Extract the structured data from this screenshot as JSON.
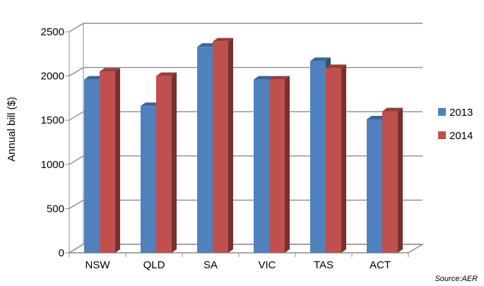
{
  "chart_data": {
    "type": "bar",
    "style": "3d-clustered-column",
    "categories": [
      "NSW",
      "QLD",
      "SA",
      "VIC",
      "TAS",
      "ACT"
    ],
    "series": [
      {
        "name": "2013",
        "values": [
          1960,
          1660,
          2330,
          1960,
          2170,
          1510
        ],
        "color": "#4F81BD"
      },
      {
        "name": "2014",
        "values": [
          2050,
          2000,
          2390,
          1960,
          2090,
          1600
        ],
        "color": "#C0504D"
      }
    ],
    "ylabel": "Annual bill ($)",
    "xlabel": "",
    "ylim": [
      0,
      2500
    ],
    "yticks": [
      0,
      500,
      1000,
      1500,
      2000,
      2500
    ],
    "grid": true,
    "legend_position": "right",
    "source_note": "Source:AER"
  }
}
